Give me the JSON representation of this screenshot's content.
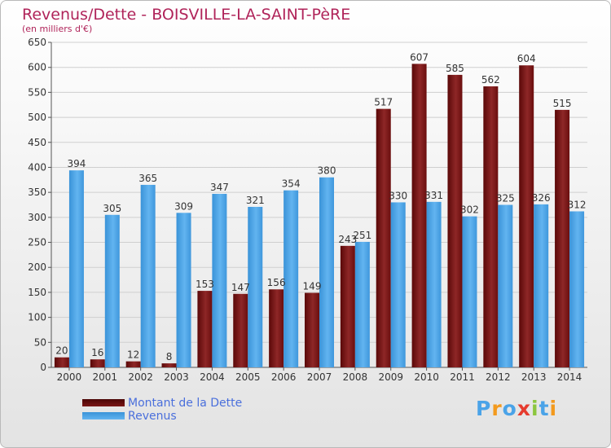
{
  "header": {
    "title": "Revenus/Dette - BOISVILLE-LA-SAINT-PèRE",
    "subtitle": "(en milliers d'€)"
  },
  "colors": {
    "dette": "#6b0d0d",
    "revenus": "#4aa3e8"
  },
  "logo": {
    "text": "Proxiti"
  },
  "chart_data": {
    "type": "bar",
    "title": "Revenus/Dette - BOISVILLE-LA-SAINT-PèRE",
    "subtitle": "(en milliers d'€)",
    "xlabel": "",
    "ylabel": "",
    "ylim": [
      0,
      650
    ],
    "ytick_step": 50,
    "grid": true,
    "legend_position": "bottom-left",
    "categories": [
      "2000",
      "2001",
      "2002",
      "2003",
      "2004",
      "2005",
      "2006",
      "2007",
      "2008",
      "2009",
      "2010",
      "2011",
      "2012",
      "2013",
      "2014"
    ],
    "series": [
      {
        "name": "Montant de la Dette",
        "values": [
          20,
          16,
          12,
          8,
          153,
          147,
          156,
          149,
          243,
          517,
          607,
          585,
          562,
          604,
          515
        ]
      },
      {
        "name": "Revenus",
        "values": [
          394,
          305,
          365,
          309,
          347,
          321,
          354,
          380,
          251,
          330,
          331,
          302,
          325,
          326,
          312
        ]
      }
    ]
  }
}
